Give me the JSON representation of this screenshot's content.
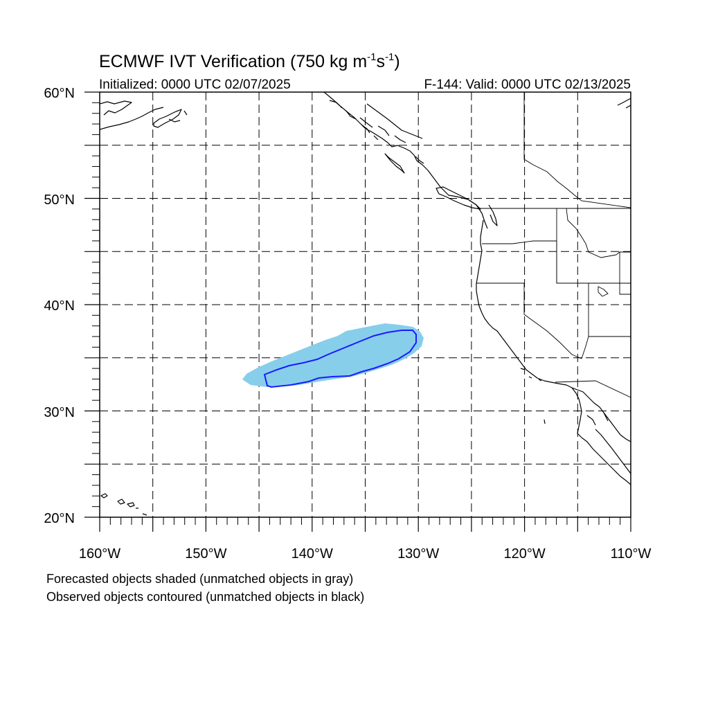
{
  "map": {
    "title": "ECMWF IVT Verification (750 kg m",
    "title_sup1": "-1",
    "title_mid": "s",
    "title_sup2": "-1",
    "title_end": ")",
    "initialized": "Initialized: 0000 UTC 02/07/2025",
    "valid": "F-144: Valid: 0000 UTC 02/13/2025",
    "lat_labels": [
      "60°N",
      "50°N",
      "40°N",
      "30°N",
      "20°N"
    ],
    "lon_labels": [
      "160°W",
      "150°W",
      "140°W",
      "130°W",
      "120°W",
      "110°W"
    ],
    "extent": {
      "lon": [
        -160,
        -110
      ],
      "lat": [
        20,
        60
      ]
    },
    "grid": "dashed, every 5 degrees",
    "colors": {
      "forecast_fill": "#87ceeb",
      "observed_contour": "#1a1aff",
      "coast": "#000000"
    }
  },
  "notes": {
    "line1": "Forecasted objects shaded (unmatched objects in gray)",
    "line2": "Observed objects contoured (unmatched objects in black)"
  }
}
